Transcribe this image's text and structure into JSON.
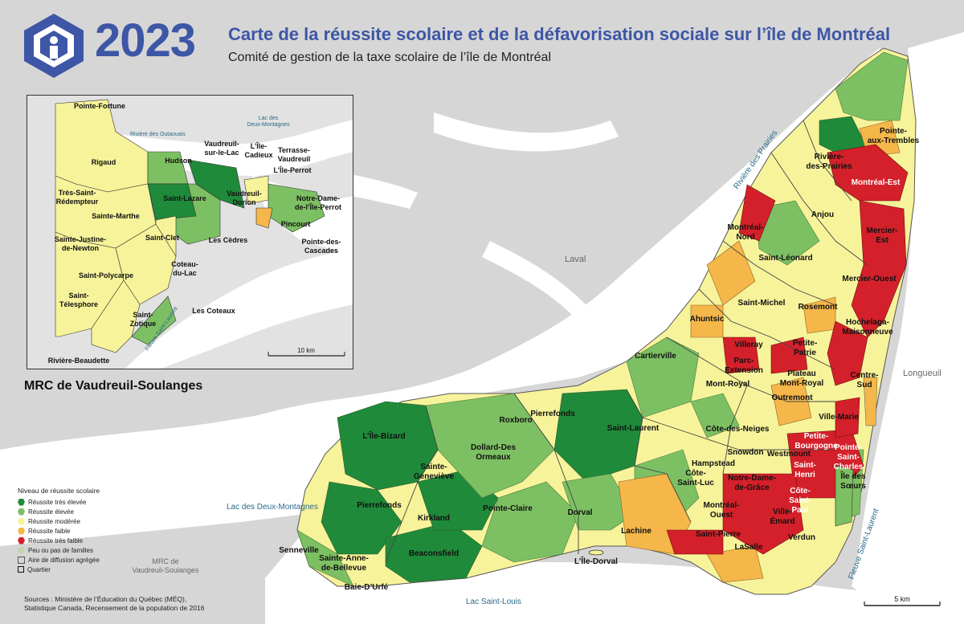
{
  "header": {
    "year": "2023",
    "title": "Carte de la réussite scolaire et de la défavorisation sociale sur l’île de Montréal",
    "subtitle": "Comité de gestion de la taxe scolaire de l’île de Montréal"
  },
  "inset": {
    "title": "MRC de Vaudreuil-Soulanges",
    "scale_label": "10 km",
    "water_labels": {
      "riviere_outaouais": "Rivière des Outaouais",
      "lac_deux_montagnes": "Lac des Deux-Montagnes",
      "fleuve": "Fleuve Saint-Laurent"
    },
    "places": {
      "pointe_fortune": "Pointe-Fortune",
      "rigaud": "Rigaud",
      "tres_saint_redempteur": "Très-Saint-Rédempteur",
      "sainte_marthe": "Sainte-Marthe",
      "sainte_justine": "Sainte-Justine-de-Newton",
      "saint_polycarpe": "Saint-Polycarpe",
      "saint_telesphore": "Saint-Télesphore",
      "riviere_beaudette": "Rivière-Beaudette",
      "saint_zotique": "Saint-Zotique",
      "les_coteaux": "Les Coteaux",
      "coteau_du_lac": "Coteau-du-Lac",
      "saint_clet": "Saint-Clet",
      "les_cedres": "Les Cèdres",
      "saint_lazare": "Saint-Lazare",
      "hudson": "Hudson",
      "vaudreuil_sur_le_lac": "Vaudreuil-sur-le-Lac",
      "ile_cadieux": "L’Île-Cadieux",
      "vaudreuil_dorion": "Vaudreuil-Dorion",
      "terrasse_vaudreuil": "Terrasse-Vaudreuil",
      "ile_perrot": "L’Île-Perrot",
      "notre_dame_ile_perrot": "Notre-Dame-de-l’Île-Perrot",
      "pincourt": "Pincourt",
      "pointe_des_cascades": "Pointe-des-Cascades"
    }
  },
  "map": {
    "scale_label": "5 km",
    "water_labels": {
      "riviere_prairies": "Rivière des Prairies",
      "lac_deux_montagnes": "Lac des Deux-Montagnes",
      "lac_saint_louis": "Lac Saint-Louis",
      "fleuve": "Fleuve Saint-Laurent"
    },
    "region_labels": {
      "laval": "Laval",
      "longueuil": "Longueuil",
      "mrc": "MRC de Vaudreuil-Soulanges"
    },
    "districts": {
      "pointe_aux_trembles": "Pointe-aux-Trembles",
      "riviere_des_prairies": "Rivière-des-Prairies",
      "montreal_est": "Montréal-Est",
      "anjou": "Anjou",
      "montreal_nord": "Montréal-Nord",
      "mercier_est": "Mercier-Est",
      "saint_leonard": "Saint-Léonard",
      "mercier_ouest": "Mercier-Ouest",
      "saint_michel": "Saint-Michel",
      "rosemont": "Rosemont",
      "ahuntsic": "Ahuntsic",
      "hochelaga": "Hochelaga-Maisonneuve",
      "villeray": "Villeray",
      "petite_patrie": "Petite-Patrie",
      "cartierville": "Cartierville",
      "parc_extension": "Parc-Extension",
      "plateau": "Plateau Mont-Royal",
      "centre_sud": "Centre-Sud",
      "mont_royal": "Mont-Royal",
      "outremont": "Outremont",
      "ville_marie": "Ville-Marie",
      "pierrefonds_north": "Pierrefonds",
      "roxboro": "Roxboro",
      "saint_laurent": "Saint-Laurent",
      "cote_des_neiges": "Côte-des-Neiges",
      "ile_bizard": "L’Île-Bizard",
      "dollard": "Dollard-Des Ormeaux",
      "petite_bourgogne": "Petite-Bourgogne",
      "pointe_saint_charles": "Pointe-Saint-Charles",
      "sainte_genevieve": "Sainte-Geneviève",
      "snowdon": "Snowdon",
      "westmount": "Westmount",
      "hampstead": "Hampstead",
      "cote_saint_luc": "Côte-Saint-Luc",
      "saint_henri": "Saint-Henri",
      "ndg": "Notre-Dame-de-Grâce",
      "cote_saint_paul": "Côte-Saint-Paul",
      "ile_des_soeurs": "Île des Sœurs",
      "pierrefonds": "Pierrefonds",
      "kirkland": "Kirkland",
      "pointe_claire": "Pointe-Claire",
      "dorval": "Dorval",
      "montreal_ouest": "Montréal-Ouest",
      "saint_pierre": "Saint-Pierre",
      "ville_emard": "Ville-Émard",
      "lachine": "Lachine",
      "verdun": "Verdun",
      "lasalle": "LaSalle",
      "senneville": "Senneville",
      "beaconsfield": "Beaconsfield",
      "sainte_anne": "Sainte-Anne-de-Bellevue",
      "ile_dorval": "L’Île-Dorval",
      "baie_d_urfe": "Baie-D’Urfé"
    }
  },
  "legend": {
    "title": "Niveau de réussite scolaire",
    "items": [
      {
        "label": "Réussite très élevée",
        "color": "#1f8a3a"
      },
      {
        "label": "Réussite élevée",
        "color": "#7dc063"
      },
      {
        "label": "Réussite modérée",
        "color": "#f7f39a"
      },
      {
        "label": "Réussite faible",
        "color": "#f5b74a"
      },
      {
        "label": "Réussite très faible",
        "color": "#d4202a"
      },
      {
        "label": "Peu ou pas de familles",
        "color": "#c4d6b0"
      }
    ],
    "line_items": [
      {
        "label": "Aire de diffusion agrégée"
      },
      {
        "label": "Quartier"
      }
    ]
  },
  "sources": {
    "line1": "Sources : Ministère de l’Éducation du Québec (MÉQ),",
    "line2": "Statistique Canada, Recensement de la population de 2016"
  },
  "colors": {
    "very_high": "#1f8a3a",
    "high": "#7dc063",
    "moderate": "#f7f39a",
    "low": "#f5b74a",
    "very_low": "#d4202a",
    "water": "#ffffff",
    "land": "#d6d6d6",
    "brand": "#3d56a6"
  }
}
